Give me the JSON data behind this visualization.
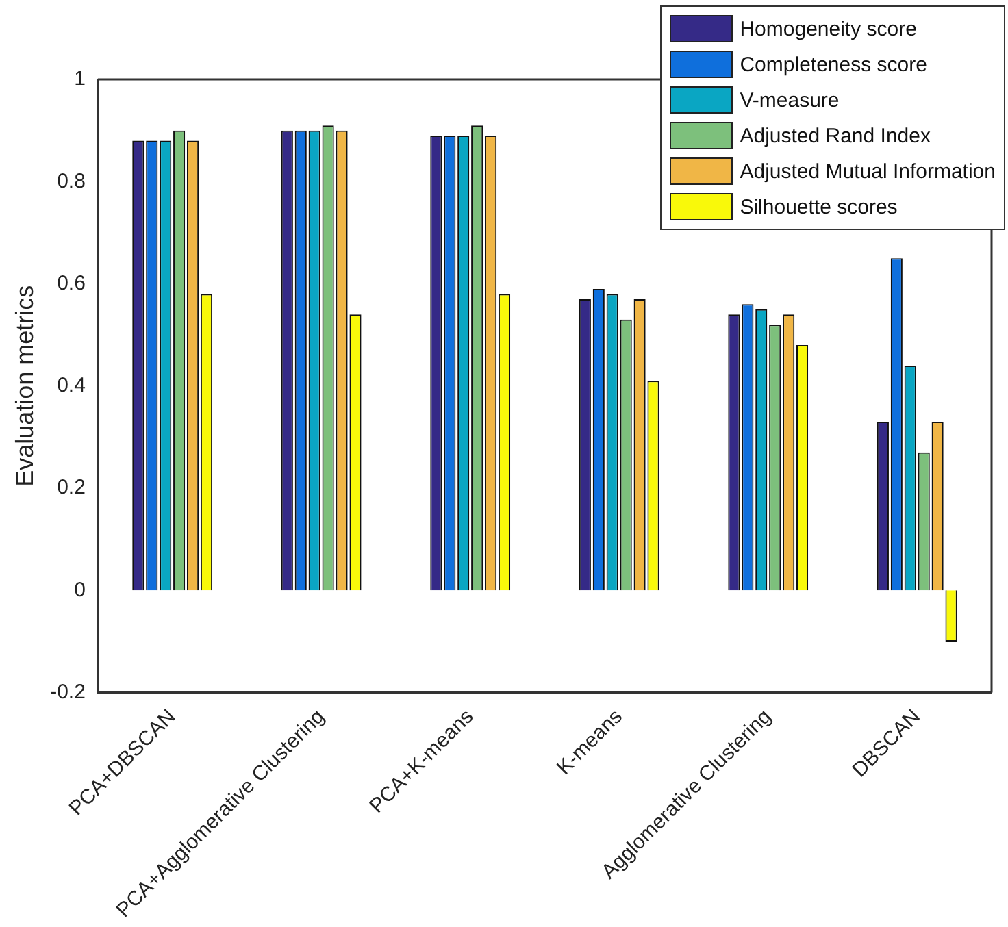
{
  "chart_data": {
    "type": "bar",
    "ylabel": "Evaluation metrics",
    "categories": [
      "PCA+DBSCAN",
      "PCA+Agglomerative Clustering",
      "PCA+K-means",
      "K-means",
      "Agglomerative Clustering",
      "DBSCAN"
    ],
    "series": [
      {
        "name": "Homogeneity score",
        "color": "#352a87",
        "values": [
          0.88,
          0.9,
          0.89,
          0.57,
          0.54,
          0.33
        ]
      },
      {
        "name": "Completeness score",
        "color": "#0f6fdc",
        "values": [
          0.88,
          0.9,
          0.89,
          0.59,
          0.56,
          0.65
        ]
      },
      {
        "name": "V-measure",
        "color": "#0aa6c3",
        "values": [
          0.88,
          0.9,
          0.89,
          0.58,
          0.55,
          0.44
        ]
      },
      {
        "name": "Adjusted Rand Index",
        "color": "#7dc07c",
        "values": [
          0.9,
          0.91,
          0.91,
          0.53,
          0.52,
          0.27
        ]
      },
      {
        "name": "Adjusted Mutual Information",
        "color": "#f0b646",
        "values": [
          0.88,
          0.9,
          0.89,
          0.57,
          0.54,
          0.33
        ]
      },
      {
        "name": "Silhouette scores",
        "color": "#f9f90a",
        "values": [
          0.58,
          0.54,
          0.58,
          0.41,
          0.48,
          -0.1
        ]
      }
    ],
    "ylim": [
      -0.2,
      1
    ],
    "yticks": [
      -0.2,
      0,
      0.2,
      0.4,
      0.6,
      0.8,
      1
    ],
    "grid": false,
    "legend": "top right"
  }
}
